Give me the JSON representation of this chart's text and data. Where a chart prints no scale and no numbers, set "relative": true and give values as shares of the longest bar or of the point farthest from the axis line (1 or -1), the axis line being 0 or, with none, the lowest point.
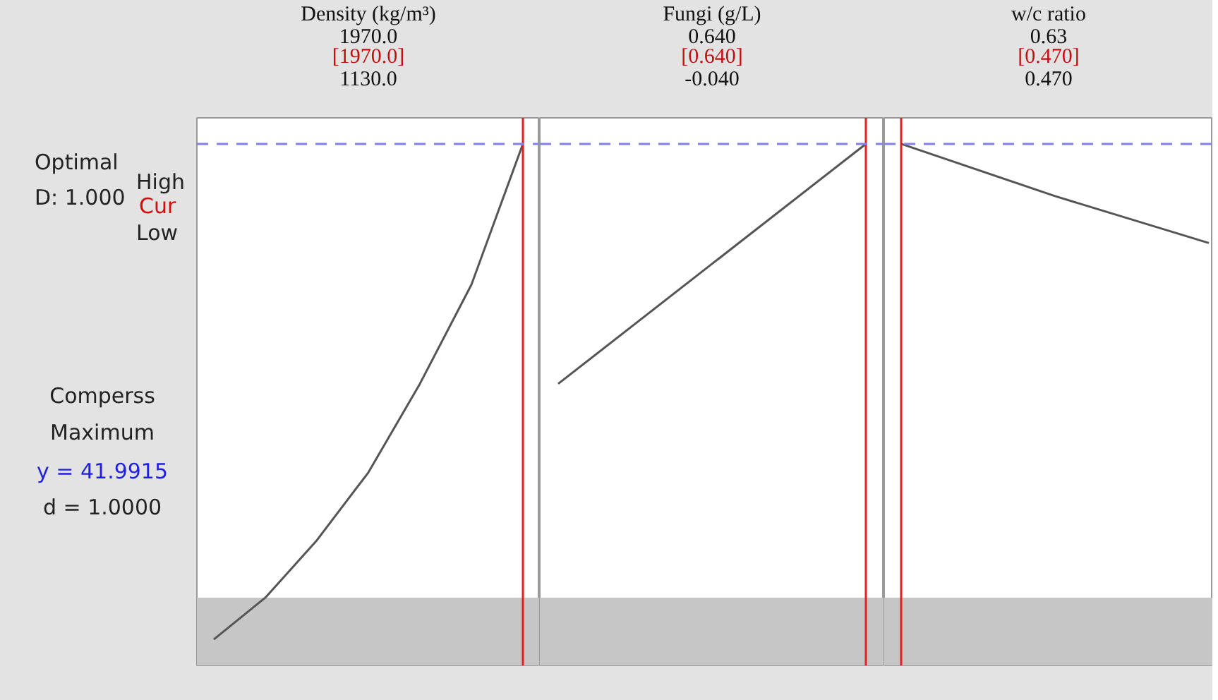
{
  "chart_data": [
    {
      "type": "other",
      "annotations": [
        "Optimal",
        "D: 1.000",
        "High",
        "Cur",
        "Low",
        "Comperss",
        "Maximum",
        "y = 41.9915",
        "d = 1.0000"
      ]
    },
    {
      "type": "line",
      "title": "Density (kg/m³)",
      "annotations": [
        "1970.0",
        "[1970.0]",
        "1130.0"
      ],
      "relative": true,
      "categories": [
        null,
        null,
        null,
        null,
        null,
        null,
        null
      ],
      "series": [
        {
          "color": "#555555",
          "values": [
            0.05,
            0.13,
            0.24,
            0.37,
            0.54,
            0.73,
            1.0
          ]
        }
      ],
      "ref_lines": [
        {
          "axis": "y",
          "value": 1.0,
          "color": "#8080f0",
          "line_style": "dashed"
        }
      ],
      "bands": [
        {
          "axis": "y",
          "from": 0,
          "to": 0.13,
          "color": "#c6c6c6"
        }
      ]
    },
    {
      "type": "line",
      "title": "Fungi (g/L)",
      "annotations": [
        "0.640",
        "[0.640]",
        "-0.040"
      ],
      "relative": true,
      "categories": [
        null,
        null,
        null
      ],
      "series": [
        {
          "color": "#555555",
          "values": [
            0.54,
            0.77,
            1.0
          ]
        }
      ],
      "ref_lines": [
        {
          "axis": "y",
          "value": 1.0,
          "color": "#8080f0",
          "line_style": "dashed"
        }
      ],
      "bands": [
        {
          "axis": "y",
          "from": 0,
          "to": 0.13,
          "color": "#c6c6c6"
        }
      ]
    },
    {
      "type": "line",
      "title": "w/c ratio",
      "annotations": [
        "0.63",
        "[0.470]",
        "0.470"
      ],
      "relative": true,
      "categories": [
        null,
        null,
        null
      ],
      "series": [
        {
          "color": "#555555",
          "values": [
            1.0,
            0.9,
            0.81
          ]
        }
      ],
      "ref_lines": [
        {
          "axis": "y",
          "value": 1.0,
          "color": "#8080f0",
          "line_style": "dashed"
        }
      ],
      "bands": [
        {
          "axis": "y",
          "from": 0,
          "to": 0.13,
          "color": "#c6c6c6"
        }
      ]
    }
  ]
}
